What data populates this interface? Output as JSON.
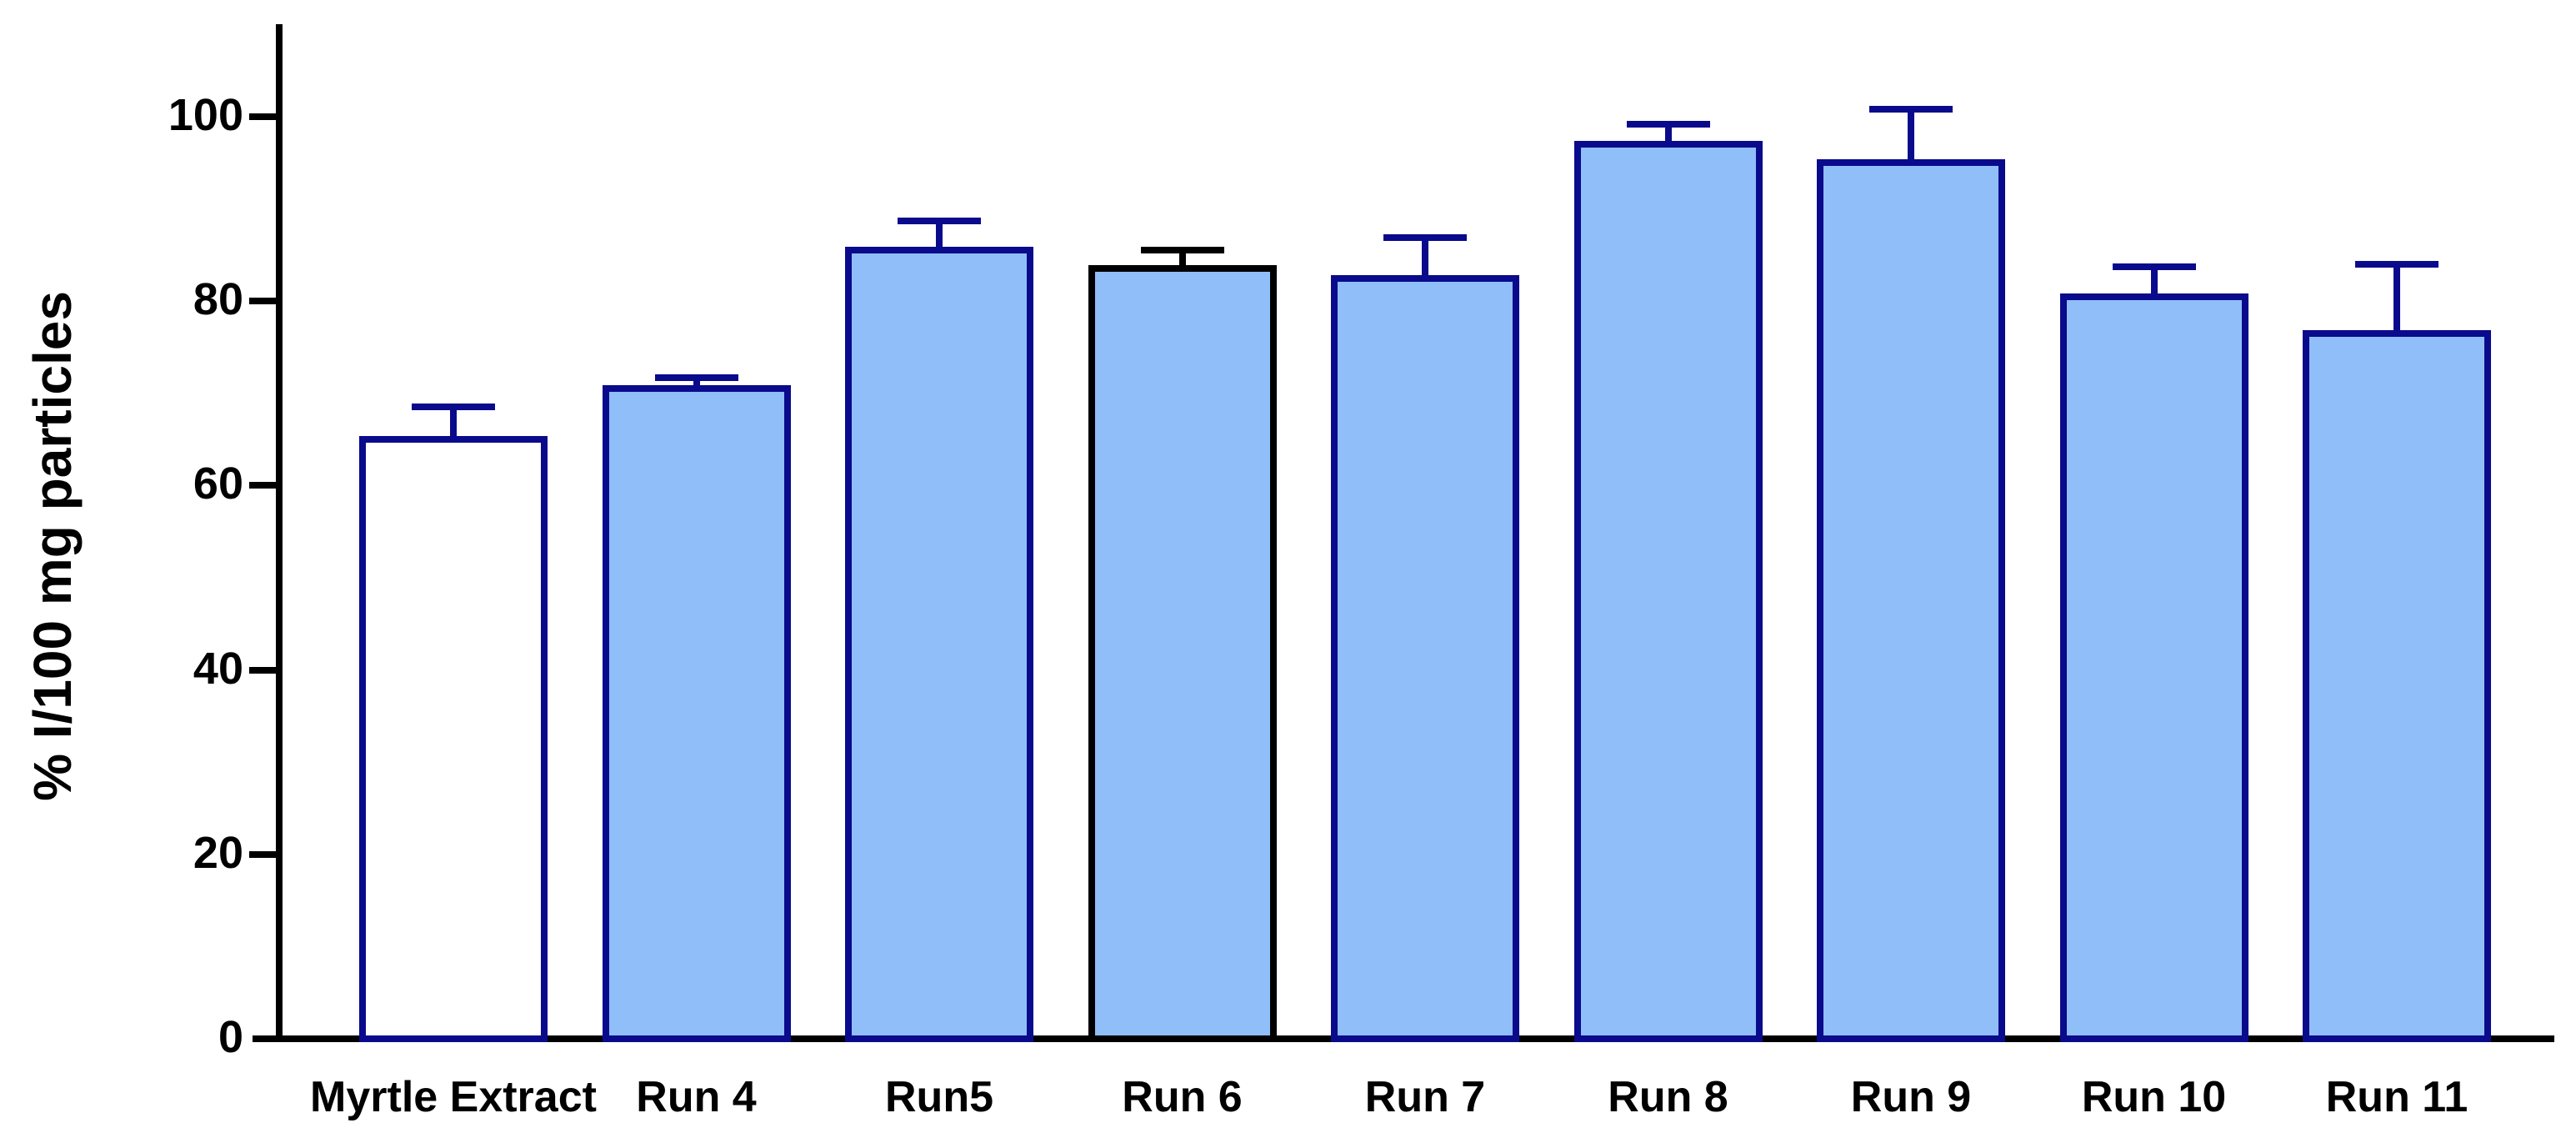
{
  "chart_data": {
    "type": "bar",
    "title": "",
    "xlabel": "",
    "ylabel": "% I/100 mg particles",
    "ylim": [
      0,
      110
    ],
    "yticks": [
      0,
      20,
      40,
      60,
      80,
      100
    ],
    "grid": false,
    "legend": false,
    "background": "#ffffff",
    "categories": [
      "Myrtle Extract",
      "Run 4",
      "Run5",
      "Run 6",
      "Run 7",
      "Run 8",
      "Run 9",
      "Run 10",
      "Run 11"
    ],
    "series": [
      {
        "name": "% I/100 mg particles",
        "values": [
          65,
          70.5,
          85.5,
          83.5,
          82.5,
          97,
          95,
          80.5,
          76.5
        ],
        "errors_plus": [
          3.5,
          1.2,
          3.2,
          2.0,
          4.4,
          2.2,
          5.8,
          3.2,
          7.5
        ]
      }
    ],
    "bar_styles": [
      {
        "fill": "#ffffff",
        "border": "#0a0a8c"
      },
      {
        "fill": "#8fbef8",
        "border": "#0a0a8c"
      },
      {
        "fill": "#8fbef8",
        "border": "#0a0a8c"
      },
      {
        "fill": "#8fbef8",
        "border": "#000000"
      },
      {
        "fill": "#8fbef8",
        "border": "#0a0a8c"
      },
      {
        "fill": "#8fbef8",
        "border": "#0a0a8c"
      },
      {
        "fill": "#8fbef8",
        "border": "#0a0a8c"
      },
      {
        "fill": "#8fbef8",
        "border": "#0a0a8c"
      },
      {
        "fill": "#8fbef8",
        "border": "#0a0a8c"
      }
    ],
    "colors": {
      "default_fill": "#8fbef8",
      "default_border": "#0a0a8c",
      "highlight_border": "#000000",
      "axis": "#000000",
      "text": "#000000"
    }
  }
}
